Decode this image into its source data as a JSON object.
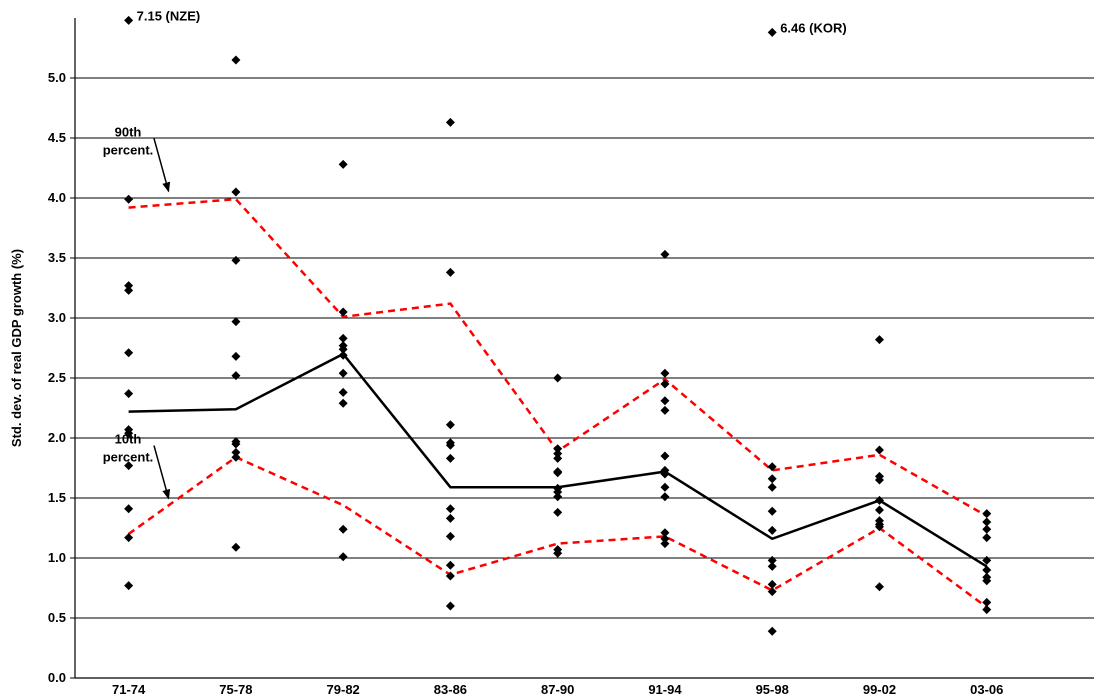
{
  "chart_data": {
    "type": "scatter",
    "title": "",
    "xlabel": "",
    "ylabel": "Std. dev. of real GDP growth (%)",
    "categories": [
      "71-74",
      "75-78",
      "79-82",
      "83-86",
      "87-90",
      "91-94",
      "95-98",
      "99-02",
      "03-06"
    ],
    "ylim": [
      0,
      5.5
    ],
    "yticks": [
      "0.0",
      "0.5",
      "1.0",
      "1.5",
      "2.0",
      "2.5",
      "3.0",
      "3.5",
      "4.0",
      "4.5",
      "5.0"
    ],
    "grid": "horizontal",
    "points": [
      [
        0.77,
        1.17,
        1.41,
        1.77,
        2.04,
        2.07,
        2.37,
        2.71,
        3.23,
        3.27,
        3.99
      ],
      [
        1.09,
        1.84,
        1.88,
        1.95,
        1.97,
        2.52,
        2.68,
        2.97,
        3.48,
        4.05,
        5.15
      ],
      [
        1.01,
        1.24,
        2.29,
        2.38,
        2.54,
        2.69,
        2.74,
        2.77,
        2.83,
        3.05,
        4.28
      ],
      [
        0.6,
        0.85,
        0.94,
        1.18,
        1.33,
        1.41,
        1.83,
        1.94,
        1.96,
        2.11,
        3.38,
        4.63
      ],
      [
        1.04,
        1.07,
        1.38,
        1.51,
        1.55,
        1.58,
        1.71,
        1.72,
        1.83,
        1.87,
        1.91,
        2.5
      ],
      [
        1.12,
        1.16,
        1.21,
        1.51,
        1.59,
        1.7,
        1.73,
        1.85,
        2.23,
        2.31,
        2.45,
        2.54,
        3.53
      ],
      [
        0.39,
        0.72,
        0.78,
        0.93,
        0.98,
        1.23,
        1.39,
        1.59,
        1.66,
        1.76
      ],
      [
        0.76,
        1.26,
        1.28,
        1.31,
        1.4,
        1.48,
        1.65,
        1.68,
        1.9,
        2.82
      ],
      [
        0.57,
        0.63,
        0.81,
        0.84,
        0.9,
        0.98,
        1.17,
        1.24,
        1.3,
        1.37
      ]
    ],
    "series": [
      {
        "values": [
          2.22,
          2.24,
          2.7,
          1.59,
          1.59,
          1.72,
          1.16,
          1.48,
          0.93
        ],
        "color": "#000000",
        "style": "solid"
      },
      {
        "values": [
          3.92,
          3.99,
          3.01,
          3.12,
          1.89,
          2.49,
          1.73,
          1.86,
          1.35
        ],
        "color": "#ff0000",
        "style": "dashed"
      },
      {
        "values": [
          1.2,
          1.84,
          1.44,
          0.86,
          1.12,
          1.18,
          0.73,
          1.25,
          0.59
        ],
        "color": "#ff0000",
        "style": "dashed"
      }
    ],
    "annotations": [
      {
        "text": "7.15  (NZE)",
        "category": "71-74",
        "value": 5.48
      },
      {
        "text": "6.46  (KOR)",
        "category": "95-98",
        "value": 5.38
      },
      {
        "text_lines": [
          "90th",
          "percent."
        ],
        "points_to": {
          "category": "71-74",
          "value": 4.03
        }
      },
      {
        "text_lines": [
          "10th",
          "percent."
        ],
        "points_to": {
          "category": "71-74",
          "value": 1.47
        }
      }
    ]
  }
}
